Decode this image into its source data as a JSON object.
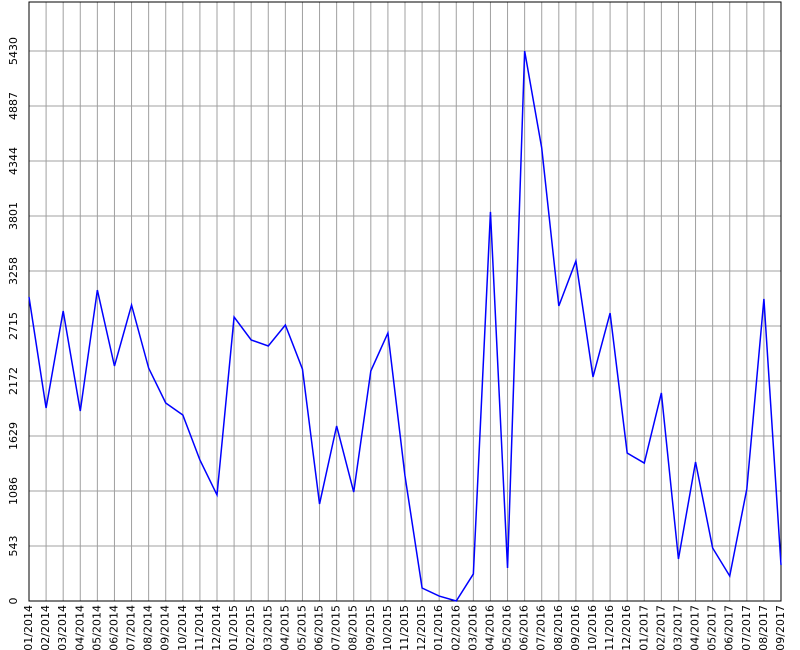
{
  "chart_data": {
    "type": "line",
    "categories": [
      "01/2014",
      "02/2014",
      "03/2014",
      "04/2014",
      "05/2014",
      "06/2014",
      "07/2014",
      "08/2014",
      "09/2014",
      "10/2014",
      "11/2014",
      "12/2014",
      "01/2015",
      "02/2015",
      "03/2015",
      "04/2015",
      "05/2015",
      "06/2015",
      "07/2015",
      "08/2015",
      "09/2015",
      "10/2015",
      "11/2015",
      "12/2015",
      "01/2016",
      "02/2016",
      "03/2016",
      "04/2016",
      "05/2016",
      "06/2016",
      "07/2016",
      "08/2016",
      "09/2016",
      "10/2016",
      "11/2016",
      "12/2016",
      "01/2017",
      "02/2017",
      "03/2017",
      "04/2017",
      "05/2017",
      "06/2017",
      "07/2017",
      "08/2017",
      "09/2017"
    ],
    "values": [
      3001,
      1905,
      2863,
      1876,
      3070,
      2320,
      2922,
      2300,
      1955,
      1836,
      1392,
      1047,
      2804,
      2577,
      2518,
      2725,
      2290,
      958,
      1728,
      1076,
      2271,
      2646,
      1234,
      128,
      49,
      0,
      267,
      3841,
      326,
      5430,
      4472,
      2913,
      3357,
      2212,
      2843,
      1461,
      1362,
      2054,
      415,
      1372,
      523,
      247,
      1106,
      2982,
      355
    ],
    "color": "#0000ff",
    "ylim": [
      0,
      5914
    ],
    "yticks": [
      0,
      543,
      1086,
      1629,
      2172,
      2715,
      3258,
      3801,
      4344,
      4887,
      5430
    ],
    "grid": true
  }
}
